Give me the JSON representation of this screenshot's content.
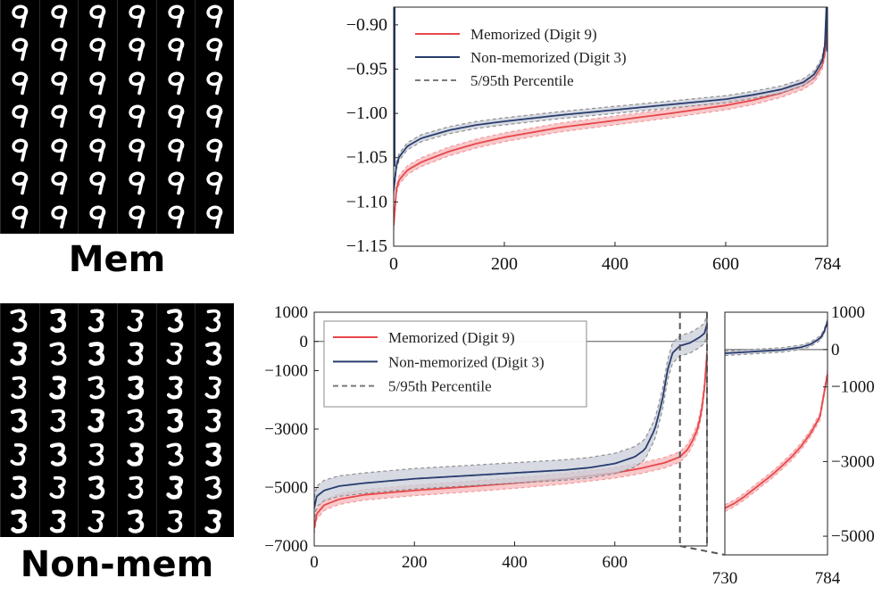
{
  "panels": {
    "mem_label": "Mem",
    "nonmem_label": "Non-mem",
    "mem_grid": {
      "rows": 7,
      "cols": 6,
      "digit": 9
    },
    "nonmem_grid": {
      "rows": 7,
      "cols": 6,
      "digit": 3
    }
  },
  "colors": {
    "memorized": "#e8474b",
    "memorized_band": "#f5b7b9",
    "nonmemorized": "#283c6e",
    "nonmemorized_band": "#c9ced8",
    "percentile": "#7a7a7a"
  },
  "chart_data": [
    {
      "id": "top",
      "type": "line",
      "title": "",
      "xlim": [
        0,
        784
      ],
      "ylim": [
        -1.15,
        -0.88
      ],
      "xticks": [
        0,
        200,
        400,
        600,
        784
      ],
      "yticks": [
        -0.9,
        -0.95,
        -1.0,
        -1.05,
        -1.1,
        -1.15
      ],
      "ytick_labels": [
        "−0.90",
        "−0.95",
        "−1.00",
        "−1.05",
        "−1.10",
        "−1.15"
      ],
      "xtick_labels": [
        "0",
        "200",
        "400",
        "600",
        "784"
      ],
      "legend": [
        "Memorized (Digit 9)",
        "Non-memorized (Digit 3)",
        "5/95th Percentile"
      ],
      "legend_position": "top-left",
      "series": [
        {
          "name": "Memorized (Digit 9)",
          "x": [
            0,
            3,
            10,
            25,
            50,
            100,
            150,
            200,
            300,
            400,
            500,
            600,
            650,
            700,
            740,
            760,
            775,
            780,
            784
          ],
          "y": [
            -1.127,
            -1.09,
            -1.075,
            -1.064,
            -1.055,
            -1.043,
            -1.034,
            -1.027,
            -1.016,
            -1.008,
            -1.0,
            -0.991,
            -0.985,
            -0.977,
            -0.968,
            -0.96,
            -0.945,
            -0.93,
            -0.895
          ],
          "band": 0.005
        },
        {
          "name": "Non-memorized (Digit 3)",
          "x": [
            0,
            3,
            10,
            25,
            50,
            100,
            150,
            200,
            300,
            400,
            500,
            600,
            650,
            700,
            740,
            760,
            775,
            780,
            784
          ],
          "y": [
            -1.088,
            -1.063,
            -1.049,
            -1.037,
            -1.028,
            -1.019,
            -1.013,
            -1.009,
            -1.002,
            -0.996,
            -0.99,
            -0.984,
            -0.979,
            -0.973,
            -0.965,
            -0.956,
            -0.94,
            -0.92,
            -0.85
          ],
          "band": 0.004
        }
      ]
    },
    {
      "id": "bottom",
      "type": "line",
      "xlim": [
        0,
        784
      ],
      "ylim": [
        -7000,
        1000
      ],
      "xticks": [
        0,
        200,
        400,
        600
      ],
      "xtick_labels": [
        "0",
        "200",
        "400",
        "600"
      ],
      "yticks": [
        1000,
        0,
        -1000,
        -3000,
        -5000,
        -7000
      ],
      "ytick_labels": [
        "1000",
        "0",
        "−1000",
        "−3000",
        "−5000",
        "−7000"
      ],
      "legend": [
        "Memorized (Digit 9)",
        "Non-memorized (Digit 3)",
        "5/95th Percentile"
      ],
      "legend_position": "top-left",
      "zoom_window": [
        730,
        784
      ],
      "series": [
        {
          "name": "Memorized (Digit 9)",
          "x": [
            0,
            5,
            20,
            50,
            100,
            200,
            300,
            400,
            500,
            600,
            650,
            700,
            730,
            745,
            755,
            765,
            772,
            778,
            784
          ],
          "y": [
            -6400,
            -5900,
            -5600,
            -5400,
            -5250,
            -5100,
            -4980,
            -4850,
            -4700,
            -4500,
            -4350,
            -4150,
            -3950,
            -3700,
            -3400,
            -3000,
            -2500,
            -1800,
            -400
          ],
          "band": 180
        },
        {
          "name": "Non-memorized (Digit 3)",
          "x": [
            0,
            5,
            20,
            50,
            100,
            200,
            300,
            400,
            500,
            550,
            600,
            640,
            660,
            680,
            695,
            705,
            715,
            730,
            750,
            770,
            780,
            784
          ],
          "y": [
            -5700,
            -5300,
            -5100,
            -4950,
            -4850,
            -4700,
            -4600,
            -4500,
            -4400,
            -4320,
            -4180,
            -3950,
            -3700,
            -3000,
            -2000,
            -1000,
            -400,
            -150,
            -50,
            150,
            300,
            600
          ],
          "band": 350
        }
      ]
    },
    {
      "id": "zoom",
      "type": "line",
      "xlim": [
        730,
        784
      ],
      "ylim": [
        -5500,
        1000
      ],
      "xticks": [
        730,
        784
      ],
      "xtick_labels": [
        "730",
        "784"
      ],
      "yticks": [
        1000,
        0,
        -1000,
        -3000,
        -5000
      ],
      "ytick_labels": [
        "1000",
        "0",
        "−1000",
        "−3000",
        "−5000"
      ],
      "series": [
        {
          "name": "Memorized (Digit 9)",
          "x": [
            730,
            735,
            740,
            745,
            750,
            755,
            760,
            765,
            770,
            775,
            780,
            784
          ],
          "y": [
            -4250,
            -4120,
            -3950,
            -3750,
            -3550,
            -3350,
            -3120,
            -2880,
            -2600,
            -2250,
            -1800,
            -650
          ],
          "band": 90
        },
        {
          "name": "Non-memorized (Digit 3)",
          "x": [
            730,
            740,
            750,
            760,
            770,
            775,
            780,
            782,
            784
          ],
          "y": [
            -100,
            -70,
            -40,
            -10,
            60,
            140,
            300,
            450,
            750
          ],
          "band": 60
        }
      ]
    }
  ]
}
